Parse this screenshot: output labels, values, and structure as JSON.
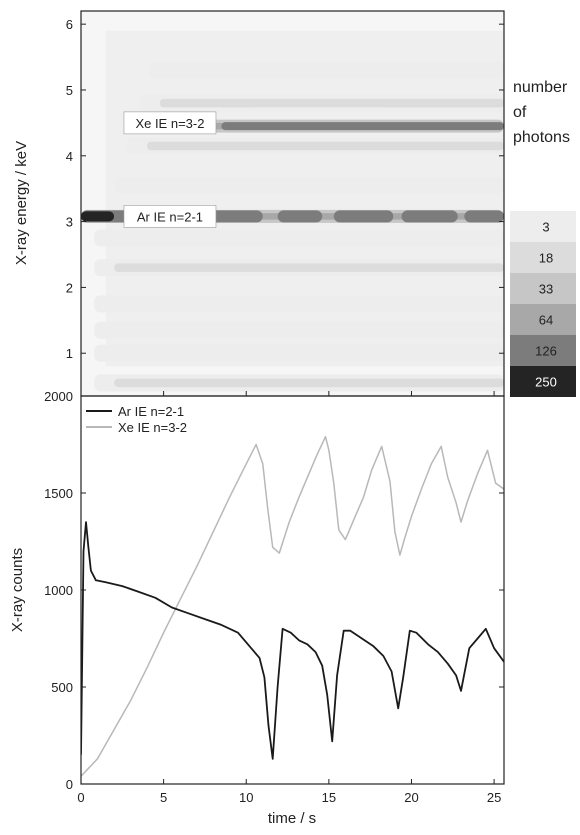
{
  "chart_data": [
    {
      "type": "heatmap",
      "ylabel": "X-ray energy / keV",
      "xlim": [
        0,
        25.6
      ],
      "ylim": [
        0.35,
        6.2
      ],
      "y_ticks": [
        "1",
        "2",
        "3",
        "4",
        "5",
        "6"
      ],
      "colorbar": {
        "title_lines": [
          "number",
          "of",
          "photons"
        ],
        "levels": [
          "3",
          "18",
          "33",
          "64",
          "126",
          "250"
        ],
        "colors": [
          "#ededed",
          "#dcdcdc",
          "#c6c6c6",
          "#a8a8a8",
          "#7c7c7c",
          "#242424"
        ]
      },
      "annotations": [
        {
          "text": "Xe IE n=3-2",
          "x": 2.6,
          "y": 4.5
        },
        {
          "text": "Ar IE n=2-1",
          "x": 2.6,
          "y": 3.08
        }
      ],
      "bands": [
        {
          "energy": 0.55,
          "level": 2
        },
        {
          "energy": 1.0,
          "level": 1
        },
        {
          "energy": 1.35,
          "level": 1
        },
        {
          "energy": 1.75,
          "level": 1
        },
        {
          "energy": 2.3,
          "level": 2
        },
        {
          "energy": 2.75,
          "level": 1
        },
        {
          "energy": 3.08,
          "level": 4,
          "ar_line": true
        },
        {
          "energy": 3.55,
          "level": 1
        },
        {
          "energy": 4.15,
          "level": 2
        },
        {
          "energy": 4.45,
          "level": 4
        },
        {
          "energy": 4.8,
          "level": 2
        },
        {
          "energy": 5.3,
          "level": 1
        }
      ]
    },
    {
      "type": "line",
      "xlabel": "time / s",
      "ylabel": "X-ray counts",
      "xlim": [
        0,
        25.6
      ],
      "ylim": [
        0,
        2000
      ],
      "x_ticks": [
        "0",
        "5",
        "10",
        "15",
        "20",
        "25"
      ],
      "y_ticks": [
        "0",
        "500",
        "1000",
        "1500",
        "2000"
      ],
      "series": [
        {
          "name": "Ar IE n=2-1",
          "color": "#1a1a1a",
          "x": [
            0,
            0.15,
            0.3,
            0.45,
            0.6,
            0.9,
            1.5,
            2.5,
            3.5,
            4.5,
            5.5,
            6.5,
            7.5,
            8.5,
            9.5,
            10.3,
            10.8,
            11.1,
            11.35,
            11.6,
            11.9,
            12.2,
            12.7,
            13.2,
            13.7,
            14.2,
            14.6,
            14.9,
            15.2,
            15.5,
            15.9,
            16.3,
            17.0,
            17.7,
            18.3,
            18.8,
            19.2,
            19.5,
            19.9,
            20.3,
            21.0,
            21.6,
            22.2,
            22.7,
            23.0,
            23.5,
            24.0,
            24.5,
            25.0,
            25.6
          ],
          "y": [
            150,
            1200,
            1350,
            1220,
            1100,
            1050,
            1040,
            1020,
            990,
            960,
            910,
            880,
            850,
            820,
            780,
            700,
            650,
            550,
            300,
            130,
            500,
            800,
            780,
            740,
            720,
            680,
            610,
            460,
            220,
            560,
            790,
            790,
            750,
            710,
            660,
            580,
            390,
            550,
            790,
            780,
            720,
            680,
            620,
            560,
            480,
            700,
            750,
            800,
            700,
            630
          ]
        },
        {
          "name": "Xe IE n=3-2",
          "color": "#b8b8b8",
          "x": [
            0,
            1,
            2,
            3,
            4,
            5,
            6,
            7,
            8,
            9,
            10,
            10.6,
            11.0,
            11.3,
            11.6,
            12.0,
            12.6,
            13.2,
            13.8,
            14.3,
            14.8,
            15.0,
            15.3,
            15.6,
            16.0,
            16.5,
            17.1,
            17.6,
            18.2,
            18.7,
            19.0,
            19.3,
            19.6,
            20.0,
            20.6,
            21.2,
            21.8,
            22.2,
            22.7,
            23.0,
            23.4,
            24.0,
            24.6,
            25.1,
            25.6
          ],
          "y": [
            40,
            130,
            280,
            430,
            600,
            780,
            950,
            1120,
            1300,
            1480,
            1650,
            1750,
            1650,
            1420,
            1220,
            1190,
            1350,
            1480,
            1600,
            1700,
            1790,
            1720,
            1550,
            1310,
            1260,
            1360,
            1480,
            1620,
            1740,
            1560,
            1300,
            1180,
            1270,
            1380,
            1520,
            1650,
            1740,
            1580,
            1450,
            1350,
            1460,
            1600,
            1720,
            1550,
            1520
          ]
        }
      ]
    }
  ]
}
